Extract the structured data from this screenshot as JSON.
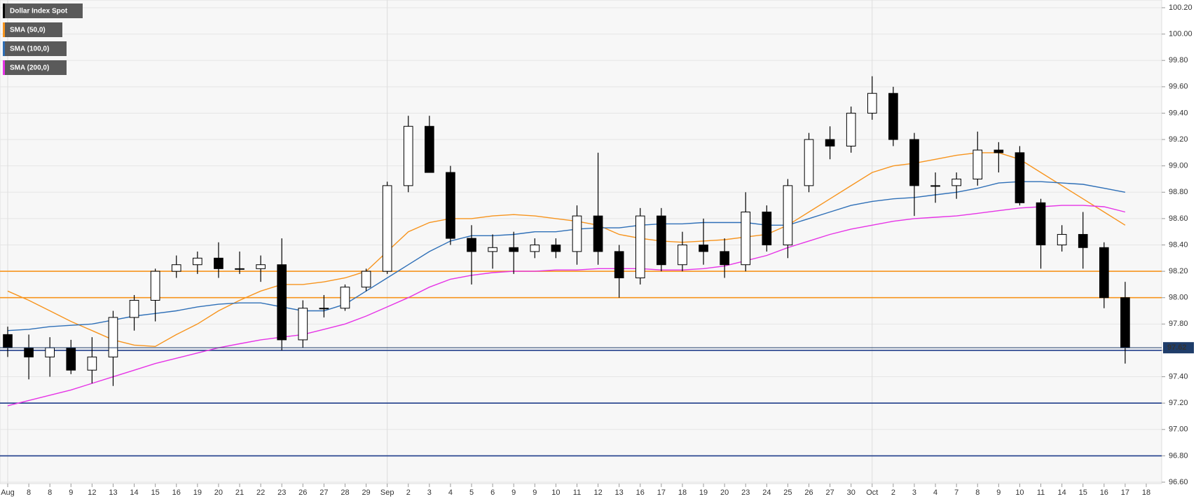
{
  "chart_data": {
    "type": "candlestick",
    "instrument": {
      "name": "Dollar Index Spot",
      "color": "#000000"
    },
    "categories": [
      "Aug",
      "8",
      "8",
      "9",
      "12",
      "13",
      "14",
      "15",
      "16",
      "19",
      "20",
      "21",
      "22",
      "23",
      "26",
      "27",
      "28",
      "29",
      "Sep",
      "2",
      "3",
      "4",
      "5",
      "6",
      "9",
      "9",
      "10",
      "11",
      "12",
      "13",
      "16",
      "17",
      "18",
      "19",
      "20",
      "23",
      "24",
      "25",
      "26",
      "27",
      "30",
      "Oct",
      "2",
      "3",
      "4",
      "7",
      "8",
      "9",
      "10",
      "11",
      "14",
      "15",
      "16",
      "17",
      "18"
    ],
    "open": [
      97.72,
      97.62,
      97.55,
      97.62,
      97.45,
      97.55,
      97.85,
      97.98,
      98.2,
      98.25,
      98.3,
      98.22,
      98.22,
      98.25,
      97.68,
      97.92,
      97.92,
      98.08,
      98.2,
      98.85,
      99.3,
      98.95,
      98.45,
      98.35,
      98.38,
      98.35,
      98.4,
      98.35,
      98.62,
      98.35,
      98.15,
      98.62,
      98.25,
      98.4,
      98.35,
      98.25,
      98.65,
      98.4,
      98.85,
      99.2,
      99.15,
      99.4,
      99.55,
      99.2,
      98.85,
      98.85,
      98.9,
      99.12,
      99.1,
      98.72,
      98.4,
      98.48,
      98.38,
      98.0,
      null
    ],
    "high": [
      97.78,
      97.72,
      97.7,
      97.68,
      97.7,
      97.9,
      98.02,
      98.22,
      98.32,
      98.35,
      98.42,
      98.35,
      98.32,
      98.45,
      97.98,
      98.02,
      98.1,
      98.22,
      98.88,
      99.38,
      99.38,
      99.0,
      98.55,
      98.48,
      98.5,
      98.45,
      98.45,
      98.7,
      99.1,
      98.4,
      98.68,
      98.68,
      98.5,
      98.6,
      98.45,
      98.8,
      98.7,
      98.9,
      99.25,
      99.3,
      99.45,
      99.68,
      99.6,
      99.25,
      98.95,
      98.95,
      99.26,
      99.18,
      99.15,
      98.75,
      98.55,
      98.65,
      98.42,
      98.12,
      null
    ],
    "low": [
      97.55,
      97.38,
      97.4,
      97.42,
      97.35,
      97.33,
      97.75,
      97.82,
      98.15,
      98.18,
      98.15,
      98.18,
      98.12,
      97.6,
      97.62,
      97.85,
      97.9,
      98.05,
      98.18,
      98.8,
      98.95,
      98.4,
      98.1,
      98.22,
      98.18,
      98.3,
      98.3,
      98.25,
      98.25,
      98.0,
      98.1,
      98.2,
      98.2,
      98.25,
      98.15,
      98.2,
      98.35,
      98.3,
      98.8,
      99.05,
      99.1,
      99.35,
      99.15,
      98.62,
      98.72,
      98.75,
      98.85,
      98.95,
      98.7,
      98.22,
      98.35,
      98.22,
      97.92,
      97.5,
      null
    ],
    "close": [
      97.62,
      97.55,
      97.62,
      97.45,
      97.55,
      97.85,
      97.98,
      98.2,
      98.25,
      98.3,
      98.22,
      98.22,
      98.25,
      97.68,
      97.92,
      97.92,
      98.08,
      98.2,
      98.85,
      99.3,
      98.95,
      98.45,
      98.35,
      98.38,
      98.35,
      98.4,
      98.35,
      98.62,
      98.35,
      98.15,
      98.62,
      98.25,
      98.4,
      98.35,
      98.25,
      98.65,
      98.4,
      98.85,
      99.2,
      99.15,
      99.4,
      99.55,
      99.2,
      98.85,
      98.85,
      98.9,
      99.12,
      99.1,
      98.72,
      98.4,
      98.48,
      98.38,
      98.0,
      97.62,
      null
    ],
    "series": [
      {
        "name": "SMA (50,0)",
        "color": "#f7941d",
        "values": [
          98.05,
          97.98,
          97.9,
          97.82,
          97.75,
          97.68,
          97.64,
          97.63,
          97.72,
          97.8,
          97.9,
          97.98,
          98.05,
          98.1,
          98.1,
          98.12,
          98.15,
          98.2,
          98.35,
          98.5,
          98.57,
          98.6,
          98.6,
          98.62,
          98.63,
          98.62,
          98.6,
          98.58,
          98.55,
          98.48,
          98.45,
          98.43,
          98.42,
          98.43,
          98.44,
          98.46,
          98.48,
          98.55,
          98.65,
          98.75,
          98.85,
          98.95,
          99.0,
          99.02,
          99.05,
          99.08,
          99.1,
          99.1,
          99.05,
          98.95,
          98.85,
          98.75,
          98.65,
          98.55,
          null
        ]
      },
      {
        "name": "SMA (100,0)",
        "color": "#2e6fb7",
        "values": [
          97.75,
          97.76,
          97.78,
          97.79,
          97.8,
          97.83,
          97.86,
          97.88,
          97.9,
          97.93,
          97.95,
          97.96,
          97.96,
          97.93,
          97.9,
          97.9,
          97.95,
          98.05,
          98.15,
          98.25,
          98.35,
          98.43,
          98.47,
          98.47,
          98.48,
          98.5,
          98.5,
          98.52,
          98.53,
          98.53,
          98.55,
          98.56,
          98.56,
          98.57,
          98.57,
          98.57,
          98.55,
          98.55,
          98.6,
          98.65,
          98.7,
          98.73,
          98.75,
          98.76,
          98.78,
          98.8,
          98.83,
          98.87,
          98.88,
          98.88,
          98.87,
          98.86,
          98.83,
          98.8,
          null
        ]
      },
      {
        "name": "SMA (200,0)",
        "color": "#e633e6",
        "values": [
          97.18,
          97.22,
          97.26,
          97.3,
          97.35,
          97.4,
          97.45,
          97.5,
          97.54,
          97.58,
          97.62,
          97.65,
          97.68,
          97.7,
          97.72,
          97.76,
          97.8,
          97.86,
          97.93,
          98.0,
          98.08,
          98.14,
          98.17,
          98.19,
          98.2,
          98.2,
          98.21,
          98.21,
          98.22,
          98.22,
          98.22,
          98.21,
          98.21,
          98.22,
          98.24,
          98.28,
          98.32,
          98.38,
          98.43,
          98.48,
          98.52,
          98.55,
          98.58,
          98.6,
          98.61,
          98.62,
          98.64,
          98.66,
          98.68,
          98.69,
          98.7,
          98.7,
          98.69,
          98.65,
          null
        ]
      }
    ],
    "levels": [
      {
        "value": 98.2,
        "color": "#f7941d"
      },
      {
        "value": 98.0,
        "color": "#f7941d"
      },
      {
        "value": 97.6,
        "color": "#1f3d8a"
      },
      {
        "value": 97.2,
        "color": "#1f3d8a"
      },
      {
        "value": 96.8,
        "color": "#1f3d8a"
      }
    ],
    "last_price": 97.62,
    "last_price_color": "#1f3d6a",
    "ylim": [
      96.6,
      100.2
    ],
    "yticks": [
      {
        "value": 96.6,
        "label": "96.60"
      },
      {
        "value": 96.8,
        "label": "96.80"
      },
      {
        "value": 97.0,
        "label": "97.00"
      },
      {
        "value": 97.2,
        "label": "97.20"
      },
      {
        "value": 97.4,
        "label": "97.40"
      },
      {
        "value": 97.6,
        "label": "97.60"
      },
      {
        "value": 97.8,
        "label": "97.80"
      },
      {
        "value": 98.0,
        "label": "98.00"
      },
      {
        "value": 98.2,
        "label": "98.20"
      },
      {
        "value": 98.4,
        "label": "98.40"
      },
      {
        "value": 98.6,
        "label": "98.60"
      },
      {
        "value": 98.8,
        "label": "98.80"
      },
      {
        "value": 99.0,
        "label": "99.00"
      },
      {
        "value": 99.2,
        "label": "99.20"
      },
      {
        "value": 99.4,
        "label": "99.40"
      },
      {
        "value": 99.6,
        "label": "99.60"
      },
      {
        "value": 99.8,
        "label": "99.80"
      },
      {
        "value": 100.0,
        "label": "100.00"
      },
      {
        "value": 100.2,
        "label": "100.20"
      }
    ],
    "grid": true
  }
}
